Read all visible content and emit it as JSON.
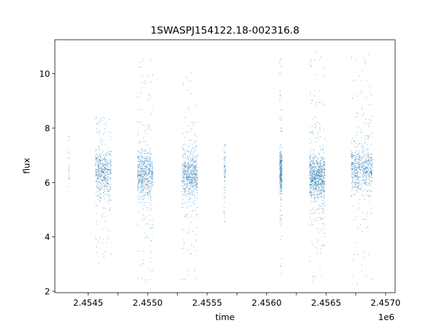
{
  "chart_data": {
    "type": "scatter",
    "title": "1SWASPJ154122.18-002316.8",
    "xlabel": "time",
    "ylabel": "flux",
    "x_offset_label": "1e6",
    "xlim": [
      2454220,
      2457080
    ],
    "ylim": [
      1.95,
      11.25
    ],
    "xticks": [
      2454500,
      2454750,
      2455000,
      2455250,
      2455500,
      2455750,
      2456000,
      2456250,
      2456500,
      2456750,
      2457000
    ],
    "xtick_labels": [
      "2.4545",
      "",
      "2.4550",
      "",
      "2.4555",
      "",
      "2.4560",
      "",
      "2.4565",
      "",
      "2.4570"
    ],
    "yticks": [
      2,
      4,
      6,
      8,
      10
    ],
    "ytick_labels": [
      "2",
      "4",
      "6",
      "8",
      "10"
    ],
    "grid": false,
    "marker_color": "#1f77b4",
    "series": [
      {
        "clusters": [
          {
            "x_start": 2454338,
            "x_end": 2454340,
            "y_center": 6.5,
            "y_min": 5.7,
            "y_max": 7.7,
            "n": 18
          },
          {
            "x_start": 2454560,
            "x_end": 2454695,
            "y_center": 6.4,
            "y_min": 3.0,
            "y_max": 8.4,
            "n": 520
          },
          {
            "x_start": 2454915,
            "x_end": 2455045,
            "y_center": 6.3,
            "y_min": 2.3,
            "y_max": 10.6,
            "n": 620
          },
          {
            "x_start": 2455290,
            "x_end": 2455420,
            "y_center": 6.3,
            "y_min": 2.4,
            "y_max": 10.4,
            "n": 620
          },
          {
            "x_start": 2455640,
            "x_end": 2455655,
            "y_center": 6.5,
            "y_min": 4.3,
            "y_max": 7.4,
            "n": 70
          },
          {
            "x_start": 2456110,
            "x_end": 2456130,
            "y_center": 6.4,
            "y_min": 2.3,
            "y_max": 10.8,
            "n": 300
          },
          {
            "x_start": 2456360,
            "x_end": 2456490,
            "y_center": 6.2,
            "y_min": 2.3,
            "y_max": 10.8,
            "n": 850
          },
          {
            "x_start": 2456710,
            "x_end": 2456890,
            "y_center": 6.5,
            "y_min": 2.2,
            "y_max": 10.8,
            "n": 650
          }
        ]
      }
    ]
  }
}
